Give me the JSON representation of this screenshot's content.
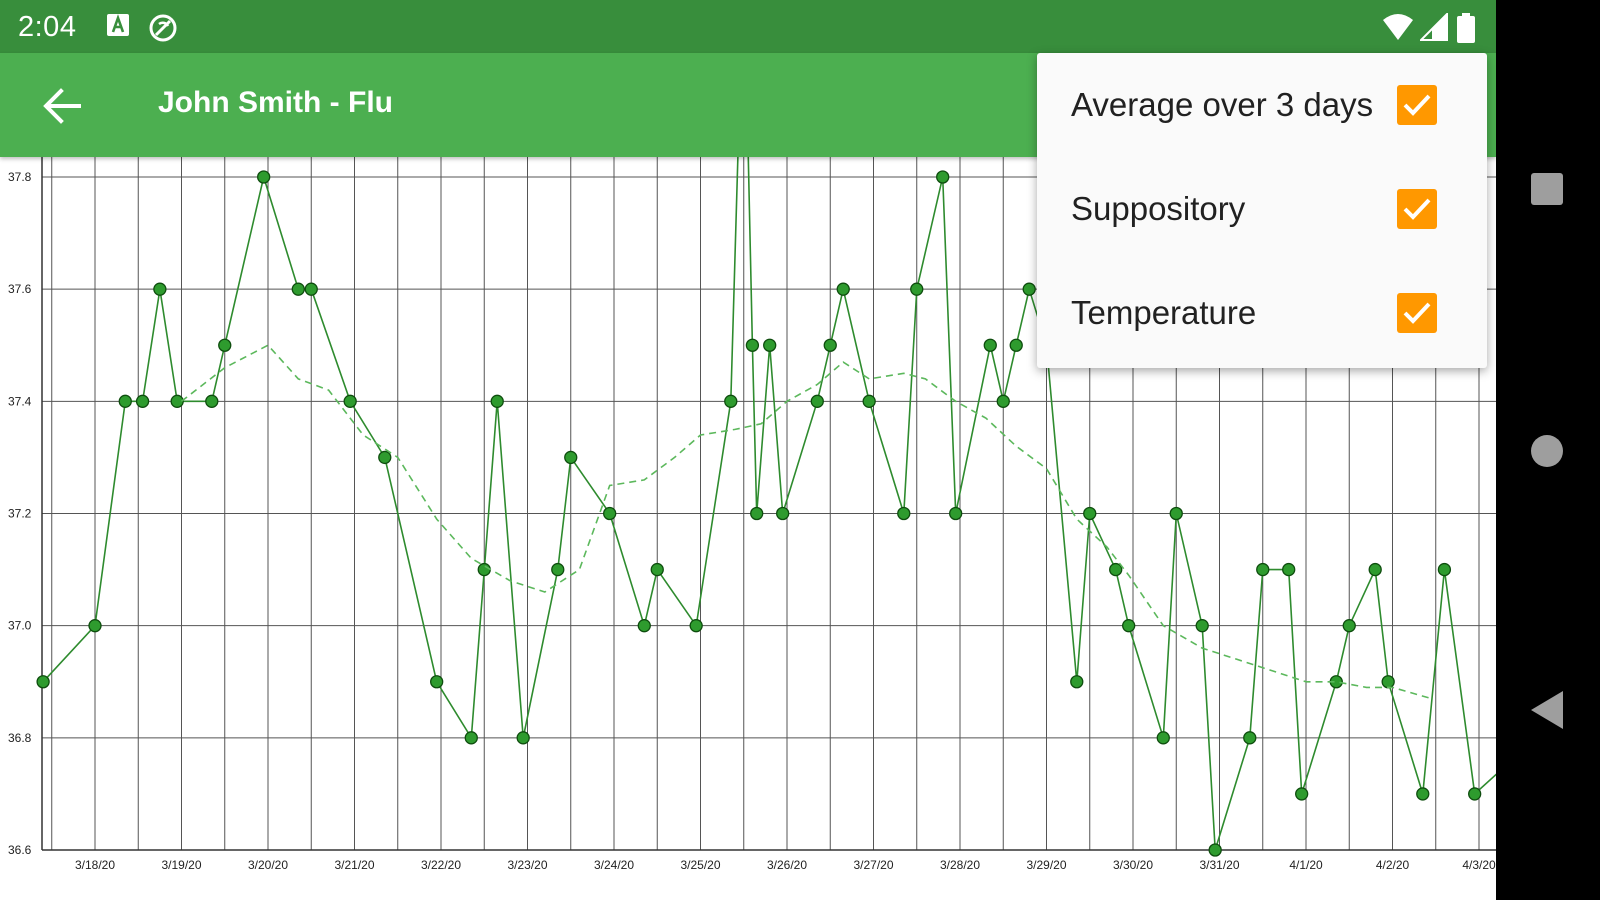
{
  "status_bar": {
    "time": "2:04",
    "left_icons": [
      "a-notification-icon",
      "sync-off-icon"
    ],
    "right_icons": [
      "wifi-icon",
      "cell-signal-icon",
      "battery-icon"
    ],
    "color": "#388e3c"
  },
  "app_bar": {
    "title": "John Smith - Flu",
    "back_icon": "arrow-back-icon",
    "color": "#4caf50"
  },
  "menu": {
    "items": [
      {
        "label": "Average over 3 days",
        "checked": true
      },
      {
        "label": "Suppository",
        "checked": true
      },
      {
        "label": "Temperature",
        "checked": true
      }
    ],
    "check_color": "#ff9800"
  },
  "nav_bar": {
    "buttons": [
      "recents-square-icon",
      "home-circle-icon",
      "back-triangle-icon"
    ]
  },
  "chart_data": {
    "type": "line",
    "x_tick_labels": [
      "3/18/20",
      "3/19/20",
      "3/20/20",
      "3/21/20",
      "3/22/20",
      "3/23/20",
      "3/24/20",
      "3/25/20",
      "3/26/20",
      "3/27/20",
      "3/28/20",
      "3/29/20",
      "3/30/20",
      "3/31/20",
      "4/1/20",
      "4/2/20",
      "4/3/20"
    ],
    "y_tick_labels": [
      "37.8",
      "37.6",
      "37.4",
      "37.2",
      "37.0",
      "36.8",
      "36.6"
    ],
    "ylim": [
      36.6,
      37.8
    ],
    "xlim": [
      -0.6,
      16.45
    ],
    "grid": true,
    "series": [
      {
        "style": "solid-with-markers",
        "color": "#2e8b2e",
        "points": [
          [
            -0.6,
            36.9
          ],
          [
            0,
            37.0
          ],
          [
            0.35,
            37.4
          ],
          [
            0.55,
            37.4
          ],
          [
            0.75,
            37.6
          ],
          [
            0.95,
            37.4
          ],
          [
            1.35,
            37.4
          ],
          [
            1.5,
            37.5
          ],
          [
            1.95,
            37.8
          ],
          [
            2.35,
            37.6
          ],
          [
            2.5,
            37.6
          ],
          [
            2.95,
            37.4
          ],
          [
            3.35,
            37.3
          ],
          [
            3.95,
            36.9
          ],
          [
            4.35,
            36.8
          ],
          [
            4.5,
            37.1
          ],
          [
            4.65,
            37.4
          ],
          [
            4.95,
            36.8
          ],
          [
            5.35,
            37.1
          ],
          [
            5.5,
            37.3
          ],
          [
            5.95,
            37.2
          ],
          [
            6.35,
            37.0
          ],
          [
            6.5,
            37.1
          ],
          [
            6.95,
            37.0
          ],
          [
            7.35,
            37.4
          ],
          [
            7.5,
            38.2
          ],
          [
            7.6,
            37.5
          ],
          [
            7.65,
            37.2
          ],
          [
            7.8,
            37.5
          ],
          [
            7.95,
            37.2
          ],
          [
            8.35,
            37.4
          ],
          [
            8.5,
            37.5
          ],
          [
            8.65,
            37.6
          ],
          [
            8.95,
            37.4
          ],
          [
            9.35,
            37.2
          ],
          [
            9.5,
            37.6
          ],
          [
            9.8,
            37.8
          ],
          [
            9.95,
            37.2
          ],
          [
            10.35,
            37.5
          ],
          [
            10.5,
            37.4
          ],
          [
            10.65,
            37.5
          ],
          [
            10.8,
            37.6
          ],
          [
            11.0,
            37.5
          ],
          [
            11.35,
            36.9
          ],
          [
            11.5,
            37.2
          ],
          [
            11.8,
            37.1
          ],
          [
            11.95,
            37.0
          ],
          [
            12.35,
            36.8
          ],
          [
            12.5,
            37.2
          ],
          [
            12.8,
            37.0
          ],
          [
            12.95,
            36.6
          ],
          [
            13.35,
            36.8
          ],
          [
            13.5,
            37.1
          ],
          [
            13.8,
            37.1
          ],
          [
            13.95,
            36.7
          ],
          [
            14.35,
            36.9
          ],
          [
            14.5,
            37.0
          ],
          [
            14.8,
            37.1
          ],
          [
            14.95,
            36.9
          ],
          [
            15.35,
            36.7
          ],
          [
            15.6,
            37.1
          ],
          [
            15.95,
            36.7
          ],
          [
            16.45,
            36.77
          ]
        ]
      },
      {
        "style": "dashed",
        "color": "#5cb85c",
        "points": [
          [
            1.0,
            37.4
          ],
          [
            1.5,
            37.46
          ],
          [
            2.0,
            37.5
          ],
          [
            2.35,
            37.44
          ],
          [
            2.7,
            37.42
          ],
          [
            3.1,
            37.34
          ],
          [
            3.5,
            37.3
          ],
          [
            3.95,
            37.19
          ],
          [
            4.35,
            37.12
          ],
          [
            4.8,
            37.08
          ],
          [
            5.2,
            37.06
          ],
          [
            5.6,
            37.1
          ],
          [
            5.95,
            37.25
          ],
          [
            6.35,
            37.26
          ],
          [
            6.7,
            37.3
          ],
          [
            7.0,
            37.34
          ],
          [
            7.4,
            37.35
          ],
          [
            7.7,
            37.36
          ],
          [
            8.0,
            37.4
          ],
          [
            8.35,
            37.43
          ],
          [
            8.65,
            37.47
          ],
          [
            8.95,
            37.44
          ],
          [
            9.35,
            37.45
          ],
          [
            9.6,
            37.44
          ],
          [
            9.95,
            37.4
          ],
          [
            10.3,
            37.37
          ],
          [
            10.65,
            37.32
          ],
          [
            11.0,
            37.28
          ],
          [
            11.35,
            37.19
          ],
          [
            11.7,
            37.14
          ],
          [
            11.95,
            37.09
          ],
          [
            12.35,
            37.0
          ],
          [
            12.8,
            36.96
          ],
          [
            13.2,
            36.94
          ],
          [
            13.6,
            36.92
          ],
          [
            14.0,
            36.9
          ],
          [
            14.35,
            36.9
          ],
          [
            14.7,
            36.89
          ],
          [
            15.0,
            36.89
          ],
          [
            15.45,
            36.87
          ]
        ]
      }
    ]
  }
}
